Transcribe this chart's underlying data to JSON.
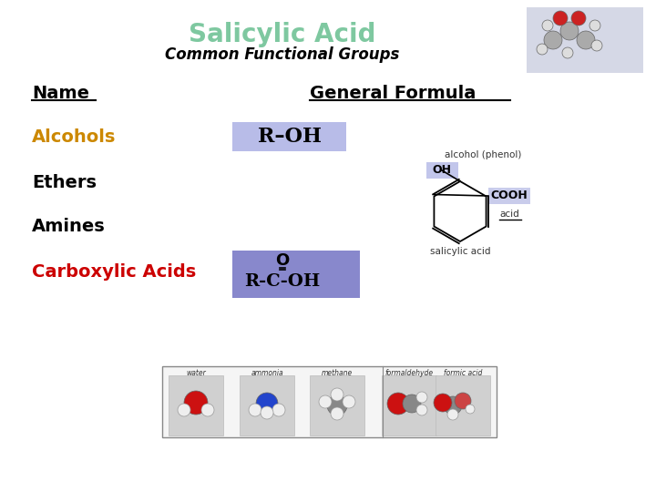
{
  "bg_color": "#ffffff",
  "title": "Salicylic Acid",
  "title_color": "#7ec8a0",
  "subtitle": "Common Functional Groups",
  "subtitle_color": "#000000",
  "name_label": "Name",
  "formula_label": "General Formula",
  "rows": [
    {
      "name": "Alcohols",
      "name_color": "#cc8800",
      "formula": "R–OH",
      "formula_bg": "#b8bce8"
    },
    {
      "name": "Ethers",
      "name_color": "#000000",
      "formula": "",
      "formula_bg": null
    },
    {
      "name": "Amines",
      "name_color": "#000000",
      "formula": "",
      "formula_bg": null
    },
    {
      "name": "Carboxylic Acids",
      "name_color": "#cc0000",
      "formula": "R-C-OH",
      "formula_bg": "#8888cc"
    }
  ],
  "alc_label": "alcohol (phenol)",
  "acid_label": "salicylic acid",
  "mol_labels": [
    "water",
    "ammonia",
    "methane",
    "formaldehyde",
    "formic acid"
  ]
}
